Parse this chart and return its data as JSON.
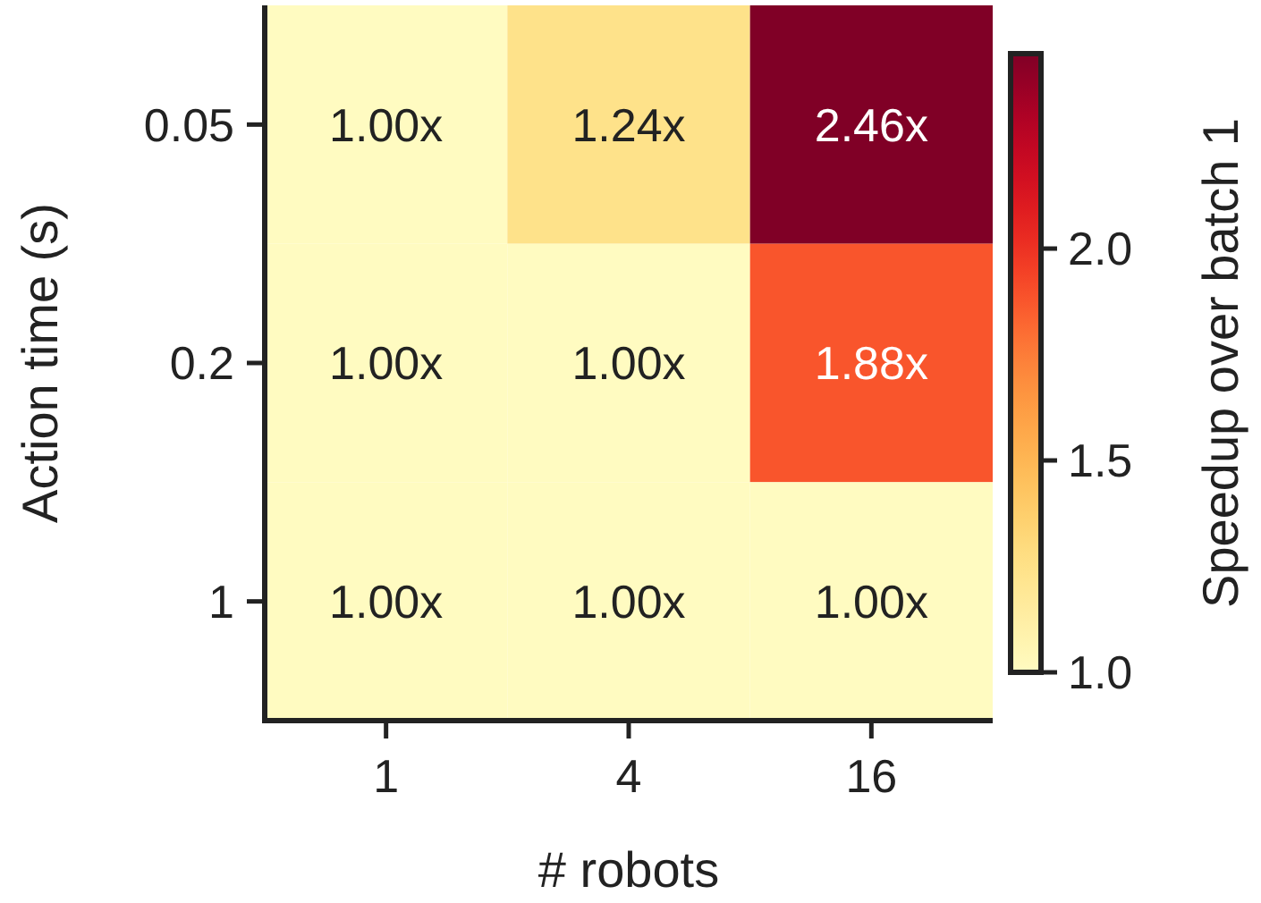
{
  "chart_data": {
    "type": "heatmap",
    "xlabel": "# robots",
    "ylabel": "Action time (s)",
    "clabel": "Speedup over batch 1",
    "categories": [
      "1",
      "4",
      "16"
    ],
    "y_categories": [
      "0.05",
      "0.2",
      "1"
    ],
    "cells": [
      [
        1.0,
        1.24,
        2.46
      ],
      [
        1.0,
        1.0,
        1.88
      ],
      [
        1.0,
        1.0,
        1.0
      ]
    ],
    "cell_labels": [
      [
        "1.00x",
        "1.24x",
        "2.46x"
      ],
      [
        "1.00x",
        "1.00x",
        "1.88x"
      ],
      [
        "1.00x",
        "1.00x",
        "1.00x"
      ]
    ],
    "clim": [
      1.0,
      2.46
    ],
    "cticks": [
      {
        "value": 1.0,
        "label": "1.0"
      },
      {
        "value": 1.5,
        "label": "1.5"
      },
      {
        "value": 2.0,
        "label": "2.0"
      }
    ]
  }
}
